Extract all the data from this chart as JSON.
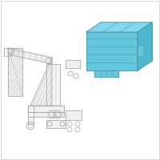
{
  "bg_color": "#ffffff",
  "line_color": "#aaaaaa",
  "module_light": "#62c8de",
  "module_mid": "#4bb8ce",
  "module_dark": "#3aa0b5",
  "module_top": "#82d8ee",
  "edge_color": "#5599aa",
  "lw": 0.6,
  "fig_size": [
    2.0,
    2.0
  ],
  "dpi": 100
}
